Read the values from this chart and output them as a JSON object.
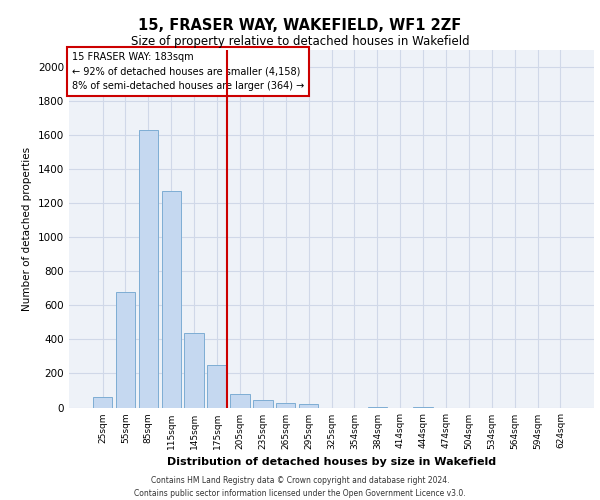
{
  "title": "15, FRASER WAY, WAKEFIELD, WF1 2ZF",
  "subtitle": "Size of property relative to detached houses in Wakefield",
  "xlabel": "Distribution of detached houses by size in Wakefield",
  "ylabel": "Number of detached properties",
  "footer_line1": "Contains HM Land Registry data © Crown copyright and database right 2024.",
  "footer_line2": "Contains public sector information licensed under the Open Government Licence v3.0.",
  "property_label": "15 FRASER WAY: 183sqm",
  "annotation_line1": "← 92% of detached houses are smaller (4,158)",
  "annotation_line2": "8% of semi-detached houses are larger (364) →",
  "bar_color": "#c5d8f0",
  "bar_edge_color": "#7eadd4",
  "vline_color": "#cc0000",
  "annotation_box_color": "#cc0000",
  "grid_color": "#d0d8e8",
  "background_color": "#eef2f8",
  "categories": [
    "25sqm",
    "55sqm",
    "85sqm",
    "115sqm",
    "145sqm",
    "175sqm",
    "205sqm",
    "235sqm",
    "265sqm",
    "295sqm",
    "325sqm",
    "354sqm",
    "384sqm",
    "414sqm",
    "444sqm",
    "474sqm",
    "504sqm",
    "534sqm",
    "564sqm",
    "594sqm",
    "624sqm"
  ],
  "values": [
    60,
    680,
    1630,
    1270,
    440,
    250,
    80,
    45,
    25,
    20,
    0,
    0,
    5,
    0,
    5,
    0,
    0,
    0,
    0,
    0,
    0
  ],
  "ylim": [
    0,
    2100
  ],
  "yticks": [
    0,
    200,
    400,
    600,
    800,
    1000,
    1200,
    1400,
    1600,
    1800,
    2000
  ],
  "vline_x": 5.43,
  "bar_width": 0.85
}
